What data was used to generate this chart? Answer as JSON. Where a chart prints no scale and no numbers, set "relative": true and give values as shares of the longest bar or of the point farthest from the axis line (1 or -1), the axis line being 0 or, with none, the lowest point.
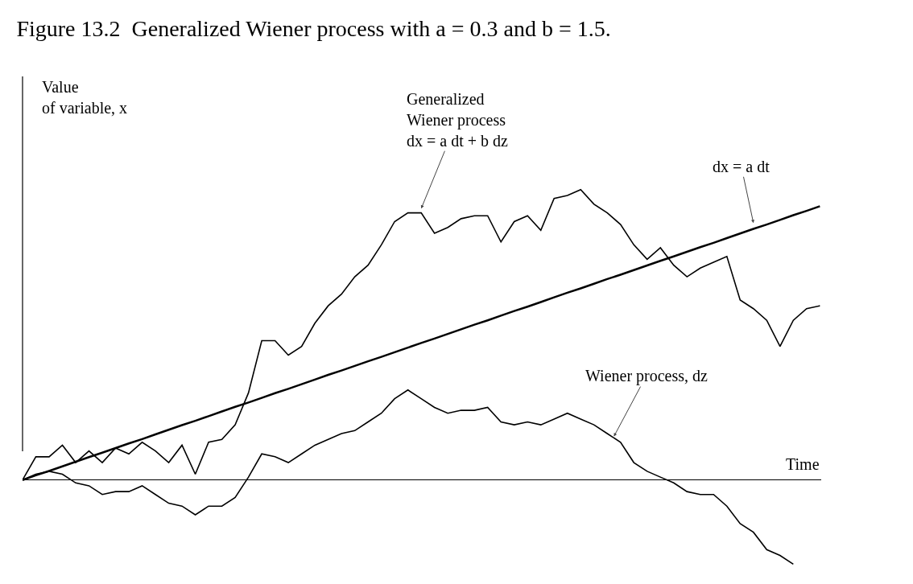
{
  "chart_data": {
    "type": "line",
    "title": "Figure 13.2  Generalized Wiener process with a = 0.3 and b = 1.5.",
    "xlabel": "Time",
    "ylabel": "Value of variable, x",
    "relative": true,
    "grid": false,
    "marker": "none",
    "line_style": "solid",
    "categories": [
      null,
      null,
      null,
      null,
      null,
      null,
      null,
      null,
      null,
      null,
      null,
      null,
      null,
      null,
      null,
      null,
      null,
      null,
      null,
      null,
      null,
      null,
      null,
      null,
      null,
      null,
      null,
      null,
      null,
      null,
      null,
      null,
      null,
      null,
      null,
      null,
      null,
      null,
      null,
      null,
      null,
      null,
      null,
      null,
      null,
      null,
      null,
      null,
      null,
      null,
      null,
      null,
      null,
      null,
      null,
      null,
      null,
      null,
      null,
      null,
      null
    ],
    "annotations": [
      "Generalized\nWiener process\ndx = a dt + b dz",
      "dx = a dt",
      "Wiener process, dz"
    ],
    "series": [
      {
        "color": "#000000",
        "values": [
          0,
          0.016,
          0.031,
          0.047,
          0.063,
          0.079,
          0.094,
          0.11,
          0.126,
          0.141,
          0.157,
          0.173,
          0.189,
          0.204,
          0.22,
          0.236,
          0.252,
          0.267,
          0.283,
          0.299,
          0.314,
          0.33,
          0.346,
          0.362,
          0.377,
          0.393,
          0.409,
          0.424,
          0.44,
          0.456,
          0.472,
          0.487,
          0.503,
          0.519,
          0.535,
          0.55,
          0.566,
          0.582,
          0.597,
          0.613,
          0.629,
          0.645,
          0.66,
          0.676,
          0.692,
          0.707,
          0.723,
          0.739,
          0.755,
          0.77,
          0.786,
          0.802,
          0.817,
          0.833,
          0.849,
          0.865,
          0.88,
          0.896,
          0.912,
          0.927,
          0.943
        ]
      },
      {
        "color": "#000000",
        "values": [
          0,
          0.08,
          0.08,
          0.12,
          0.06,
          0.1,
          0.06,
          0.11,
          0.09,
          0.13,
          0.1,
          0.06,
          0.12,
          0.02,
          0.13,
          0.14,
          0.19,
          0.3,
          0.48,
          0.48,
          0.43,
          0.46,
          0.54,
          0.6,
          0.64,
          0.7,
          0.74,
          0.81,
          0.89,
          0.92,
          0.92,
          0.85,
          0.87,
          0.9,
          0.91,
          0.91,
          0.82,
          0.89,
          0.91,
          0.86,
          0.97,
          0.98,
          1.0,
          0.95,
          0.92,
          0.88,
          0.81,
          0.76,
          0.8,
          0.74,
          0.7,
          0.73,
          0.75,
          0.77,
          0.62,
          0.59,
          0.55,
          0.46,
          0.55,
          0.59,
          0.6
        ]
      },
      {
        "color": "#000000",
        "values": [
          0,
          0.02,
          0.03,
          0.02,
          -0.01,
          -0.02,
          -0.05,
          -0.04,
          -0.04,
          -0.02,
          -0.05,
          -0.08,
          -0.09,
          -0.12,
          -0.09,
          -0.09,
          -0.06,
          0.01,
          0.09,
          0.08,
          0.06,
          0.09,
          0.12,
          0.14,
          0.16,
          0.17,
          0.2,
          0.23,
          0.28,
          0.31,
          0.28,
          0.25,
          0.23,
          0.24,
          0.24,
          0.25,
          0.2,
          0.19,
          0.2,
          0.19,
          0.21,
          0.23,
          0.21,
          0.19,
          0.16,
          0.13,
          0.06,
          0.03,
          0.01,
          -0.01,
          -0.04,
          -0.05,
          -0.05,
          -0.09,
          -0.15,
          -0.18,
          -0.24,
          -0.26,
          -0.29,
          null,
          null
        ]
      }
    ]
  }
}
